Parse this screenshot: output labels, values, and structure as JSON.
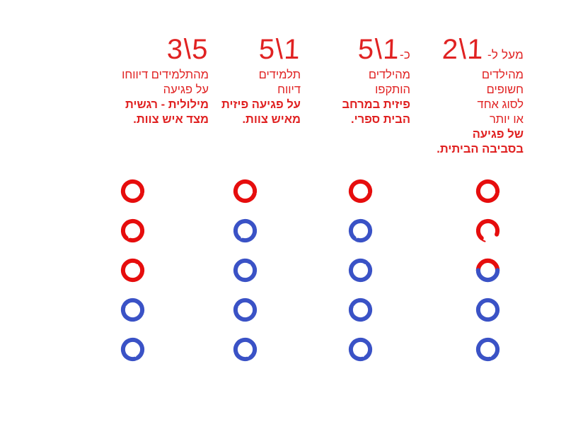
{
  "page": {
    "background": "#ffffff",
    "language": "he",
    "direction": "rtl"
  },
  "colors": {
    "text_red": "#e02222",
    "circle_red": "#e60d0d",
    "circle_blue": "#3a52c6"
  },
  "columns": [
    {
      "id": "home-environment",
      "header": {
        "prefix": "מעל ל- ",
        "value": "2\\1"
      },
      "lines": [
        {
          "text": "מהילדים",
          "bold": false
        },
        {
          "text": "חשופים",
          "bold": false
        },
        {
          "text": "לסוג אחד",
          "bold": false
        },
        {
          "text": "או יותר",
          "bold": false
        },
        {
          "text": "של פגיעה",
          "bold": true
        },
        {
          "text": "בסביבה הביתית.",
          "bold": true
        }
      ],
      "circles": [
        "red",
        "red",
        "half",
        "blue",
        "blue"
      ]
    },
    {
      "id": "school-physical-attack",
      "header": {
        "prefix": "כ-",
        "value": "5\\1"
      },
      "lines": [
        {
          "text": "מהילדים",
          "bold": false
        },
        {
          "text": "הותקפו",
          "bold": false
        },
        {
          "text": "פיזית במרחב",
          "bold": true
        },
        {
          "text": "הבית ספרי.",
          "bold": true
        }
      ],
      "circles": [
        "red",
        "blue",
        "blue",
        "blue",
        "blue"
      ]
    },
    {
      "id": "staff-physical-harm",
      "header": {
        "prefix": "",
        "value": "5\\1"
      },
      "lines": [
        {
          "text": "תלמידים",
          "bold": false
        },
        {
          "text": "דיווח",
          "bold": false
        },
        {
          "text": "על פגיעה פיזית",
          "bold": true
        },
        {
          "text": "מאיש צוות.",
          "bold": true
        }
      ],
      "circles": [
        "red",
        "blue",
        "blue",
        "blue",
        "blue"
      ]
    },
    {
      "id": "staff-verbal-emotional-harm",
      "header": {
        "prefix": "",
        "value": "3\\5"
      },
      "lines": [
        {
          "text": "מהתלמידים דיווחו",
          "bold": false
        },
        {
          "text": "על פגיעה",
          "bold": false
        },
        {
          "text": "מילולית - רגשית",
          "bold": true
        },
        {
          "text": "מצד איש צוות.",
          "bold": true
        }
      ],
      "circles": [
        "red",
        "red",
        "red",
        "blue",
        "blue"
      ]
    }
  ]
}
